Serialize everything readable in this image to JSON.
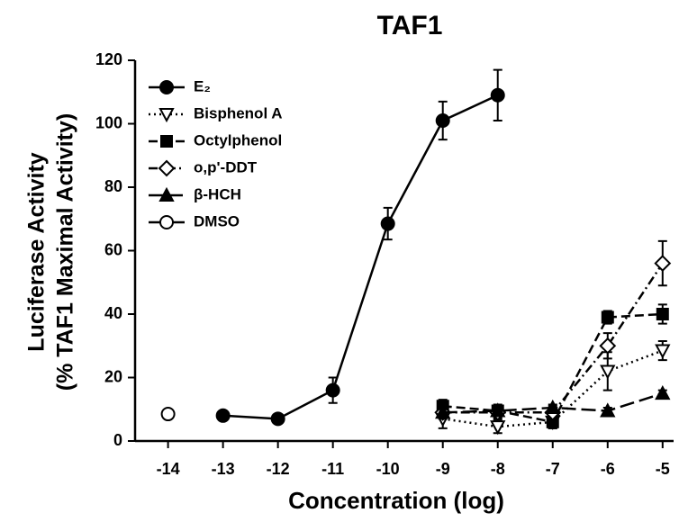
{
  "chart_data": {
    "type": "line",
    "title": "TAF1",
    "xlabel": "Concentration (log)",
    "ylabel": [
      "Luciferase Activity",
      "(% TAF1 Maximal Activity)"
    ],
    "xlim": [
      -14.6,
      -4.8
    ],
    "xticks": [
      -14,
      -13,
      -12,
      -11,
      -10,
      -9,
      -8,
      -7,
      -6,
      -5
    ],
    "ylim": [
      0,
      120
    ],
    "yticks": [
      0,
      20,
      40,
      60,
      80,
      100,
      120
    ],
    "legend": "upper left",
    "series": [
      {
        "name": "E₂",
        "color": "#000000",
        "marker": "circle",
        "filled": true,
        "dash": "solid",
        "x": [
          -13,
          -12,
          -11,
          -10,
          -9,
          -8
        ],
        "values": [
          8,
          7,
          16,
          68.5,
          101,
          109
        ],
        "errors": [
          1,
          1,
          4,
          5,
          6,
          8
        ]
      },
      {
        "name": "Bisphenol A",
        "color": "#000000",
        "marker": "triangle-down",
        "filled": false,
        "dash": "dotted",
        "x": [
          -9,
          -8,
          -7,
          -6,
          -5
        ],
        "values": [
          7,
          4.5,
          6,
          22,
          28.5
        ],
        "errors": [
          3,
          2,
          2,
          6,
          3
        ]
      },
      {
        "name": "Octylphenol",
        "color": "#000000",
        "marker": "square",
        "filled": true,
        "dash": "dashed",
        "x": [
          -9,
          -8,
          -7,
          -6,
          -5
        ],
        "values": [
          11,
          9.5,
          6,
          39,
          40
        ],
        "errors": [
          2,
          2,
          2,
          2,
          3
        ]
      },
      {
        "name": "o,p'-DDT",
        "color": "#000000",
        "marker": "diamond",
        "filled": false,
        "dash": "dashdot",
        "x": [
          -9,
          -8,
          -7,
          -6,
          -5
        ],
        "values": [
          9,
          9,
          9,
          30,
          56
        ],
        "errors": [
          2,
          2,
          2,
          4,
          7
        ]
      },
      {
        "name": "β-HCH",
        "color": "#000000",
        "marker": "triangle-up",
        "filled": true,
        "dash": "longdash",
        "x": [
          -9,
          -8,
          -7,
          -6,
          -5
        ],
        "values": [
          9,
          9.5,
          10.5,
          9.5,
          15
        ],
        "errors": [
          1,
          1,
          1,
          1,
          1
        ]
      },
      {
        "name": "DMSO",
        "color": "#000000",
        "marker": "circle",
        "filled": false,
        "dash": "solid",
        "x": [
          -14
        ],
        "values": [
          8.5
        ],
        "errors": [
          1
        ]
      }
    ]
  }
}
